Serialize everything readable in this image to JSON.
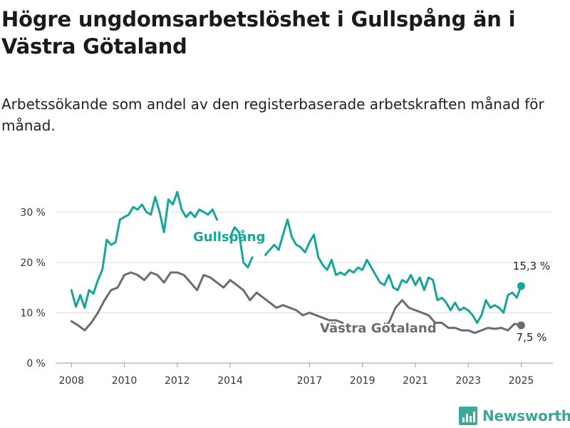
{
  "title": "Högre ungdomsarbetslöshet i Gullspång än i Västra Götaland",
  "subtitle": "Arbetssökande som andel av den registerbaserade arbetskraften månad för månad.",
  "brand": {
    "name": "Newsworthy",
    "icon": "newsworthy-logo-icon"
  },
  "colors": {
    "gullspang": "#15a59a",
    "vastra": "#6b6b73",
    "grid": "#dddddd",
    "axis": "#999999"
  },
  "chart_data": {
    "type": "line",
    "x_ticks": [
      "2008",
      "2010",
      "2012",
      "2014",
      "2017",
      "2019",
      "2021",
      "2023",
      "2025"
    ],
    "y_ticks": [
      "0 %",
      "10 %",
      "20 %",
      "30 %"
    ],
    "ylim": [
      0,
      35
    ],
    "grid": "horizontal",
    "series": [
      {
        "name": "Gullspång",
        "end_label": "15,3 %",
        "points": [
          [
            "2008-01",
            14.5
          ],
          [
            "2008-03",
            11.2
          ],
          [
            "2008-05",
            13.5
          ],
          [
            "2008-07",
            11.0
          ],
          [
            "2008-09",
            14.5
          ],
          [
            "2008-11",
            13.8
          ],
          [
            "2009-01",
            16.5
          ],
          [
            "2009-03",
            18.5
          ],
          [
            "2009-05",
            24.5
          ],
          [
            "2009-07",
            23.5
          ],
          [
            "2009-09",
            24.0
          ],
          [
            "2009-11",
            28.5
          ],
          [
            "2010-01",
            29.0
          ],
          [
            "2010-03",
            29.5
          ],
          [
            "2010-05",
            31.0
          ],
          [
            "2010-07",
            30.5
          ],
          [
            "2010-09",
            31.5
          ],
          [
            "2010-11",
            30.0
          ],
          [
            "2011-01",
            29.5
          ],
          [
            "2011-03",
            33.0
          ],
          [
            "2011-05",
            30.0
          ],
          [
            "2011-07",
            26.0
          ],
          [
            "2011-09",
            32.5
          ],
          [
            "2011-11",
            31.5
          ],
          [
            "2012-01",
            34.0
          ],
          [
            "2012-03",
            30.5
          ],
          [
            "2012-05",
            29.0
          ],
          [
            "2012-07",
            30.0
          ],
          [
            "2012-09",
            29.0
          ],
          [
            "2012-11",
            30.5
          ],
          [
            "2013-01",
            30.0
          ],
          [
            "2013-03",
            29.5
          ],
          [
            "2013-05",
            30.5
          ],
          [
            "2013-07",
            28.5
          ],
          [
            "2013-10",
            null
          ],
          [
            "2014-01",
            25.0
          ],
          [
            "2014-03",
            27.0
          ],
          [
            "2014-05",
            26.0
          ],
          [
            "2014-07",
            20.0
          ],
          [
            "2014-09",
            19.0
          ],
          [
            "2014-11",
            21.0
          ],
          [
            "2015-01",
            null
          ],
          [
            "2015-05",
            21.5
          ],
          [
            "2015-07",
            22.5
          ],
          [
            "2015-09",
            23.5
          ],
          [
            "2015-11",
            22.5
          ],
          [
            "2016-01",
            25.5
          ],
          [
            "2016-03",
            28.5
          ],
          [
            "2016-05",
            25.0
          ],
          [
            "2016-07",
            23.5
          ],
          [
            "2016-09",
            23.0
          ],
          [
            "2016-11",
            22.0
          ],
          [
            "2017-01",
            24.0
          ],
          [
            "2017-03",
            25.5
          ],
          [
            "2017-05",
            21.0
          ],
          [
            "2017-07",
            19.5
          ],
          [
            "2017-09",
            18.5
          ],
          [
            "2017-11",
            20.5
          ],
          [
            "2018-01",
            17.5
          ],
          [
            "2018-03",
            18.0
          ],
          [
            "2018-05",
            17.5
          ],
          [
            "2018-07",
            18.5
          ],
          [
            "2018-09",
            18.0
          ],
          [
            "2018-11",
            19.0
          ],
          [
            "2019-01",
            18.5
          ],
          [
            "2019-03",
            20.5
          ],
          [
            "2019-05",
            19.0
          ],
          [
            "2019-07",
            17.5
          ],
          [
            "2019-09",
            16.0
          ],
          [
            "2019-11",
            15.5
          ],
          [
            "2020-01",
            17.5
          ],
          [
            "2020-03",
            15.0
          ],
          [
            "2020-05",
            14.5
          ],
          [
            "2020-07",
            16.5
          ],
          [
            "2020-09",
            16.0
          ],
          [
            "2020-11",
            17.5
          ],
          [
            "2021-01",
            15.5
          ],
          [
            "2021-03",
            17.0
          ],
          [
            "2021-05",
            14.5
          ],
          [
            "2021-07",
            17.0
          ],
          [
            "2021-09",
            16.5
          ],
          [
            "2021-11",
            12.5
          ],
          [
            "2022-01",
            13.0
          ],
          [
            "2022-03",
            12.0
          ],
          [
            "2022-05",
            10.5
          ],
          [
            "2022-07",
            12.0
          ],
          [
            "2022-09",
            10.5
          ],
          [
            "2022-11",
            11.0
          ],
          [
            "2023-01",
            10.5
          ],
          [
            "2023-03",
            9.5
          ],
          [
            "2023-05",
            8.0
          ],
          [
            "2023-07",
            9.5
          ],
          [
            "2023-09",
            12.5
          ],
          [
            "2023-11",
            11.0
          ],
          [
            "2024-01",
            11.5
          ],
          [
            "2024-03",
            11.0
          ],
          [
            "2024-05",
            10.0
          ],
          [
            "2024-07",
            13.5
          ],
          [
            "2024-09",
            14.0
          ],
          [
            "2024-11",
            13.0
          ],
          [
            "2025-01",
            15.3
          ]
        ]
      },
      {
        "name": "Västra Götaland",
        "end_label": "7,5 %",
        "points": [
          [
            "2008-01",
            8.3
          ],
          [
            "2008-04",
            7.5
          ],
          [
            "2008-07",
            6.5
          ],
          [
            "2008-10",
            8.0
          ],
          [
            "2009-01",
            10.0
          ],
          [
            "2009-04",
            12.5
          ],
          [
            "2009-07",
            14.5
          ],
          [
            "2009-10",
            15.0
          ],
          [
            "2010-01",
            17.5
          ],
          [
            "2010-04",
            18.0
          ],
          [
            "2010-07",
            17.5
          ],
          [
            "2010-10",
            16.5
          ],
          [
            "2011-01",
            18.0
          ],
          [
            "2011-04",
            17.5
          ],
          [
            "2011-07",
            16.0
          ],
          [
            "2011-10",
            18.0
          ],
          [
            "2012-01",
            18.0
          ],
          [
            "2012-04",
            17.5
          ],
          [
            "2012-07",
            16.0
          ],
          [
            "2012-10",
            14.5
          ],
          [
            "2013-01",
            17.5
          ],
          [
            "2013-04",
            17.0
          ],
          [
            "2013-07",
            16.0
          ],
          [
            "2013-10",
            15.0
          ],
          [
            "2014-01",
            16.5
          ],
          [
            "2014-04",
            15.5
          ],
          [
            "2014-07",
            14.5
          ],
          [
            "2014-10",
            12.5
          ],
          [
            "2015-01",
            14.0
          ],
          [
            "2015-04",
            13.0
          ],
          [
            "2015-07",
            12.0
          ],
          [
            "2015-10",
            11.0
          ],
          [
            "2016-01",
            11.5
          ],
          [
            "2016-04",
            11.0
          ],
          [
            "2016-07",
            10.5
          ],
          [
            "2016-10",
            9.5
          ],
          [
            "2017-01",
            10.0
          ],
          [
            "2017-04",
            9.5
          ],
          [
            "2017-07",
            9.0
          ],
          [
            "2017-10",
            8.5
          ],
          [
            "2018-01",
            8.5
          ],
          [
            "2018-04",
            8.0
          ],
          [
            "2018-07",
            null
          ],
          [
            "2020-01",
            8.0
          ],
          [
            "2020-04",
            11.0
          ],
          [
            "2020-07",
            12.5
          ],
          [
            "2020-10",
            11.0
          ],
          [
            "2021-01",
            10.5
          ],
          [
            "2021-04",
            10.0
          ],
          [
            "2021-07",
            9.5
          ],
          [
            "2021-10",
            8.0
          ],
          [
            "2022-01",
            8.0
          ],
          [
            "2022-04",
            7.0
          ],
          [
            "2022-07",
            7.0
          ],
          [
            "2022-10",
            6.5
          ],
          [
            "2023-01",
            6.5
          ],
          [
            "2023-04",
            6.0
          ],
          [
            "2023-07",
            6.5
          ],
          [
            "2023-10",
            7.0
          ],
          [
            "2024-01",
            6.8
          ],
          [
            "2024-04",
            7.0
          ],
          [
            "2024-07",
            6.5
          ],
          [
            "2024-10",
            7.8
          ],
          [
            "2025-01",
            7.5
          ]
        ]
      }
    ]
  }
}
